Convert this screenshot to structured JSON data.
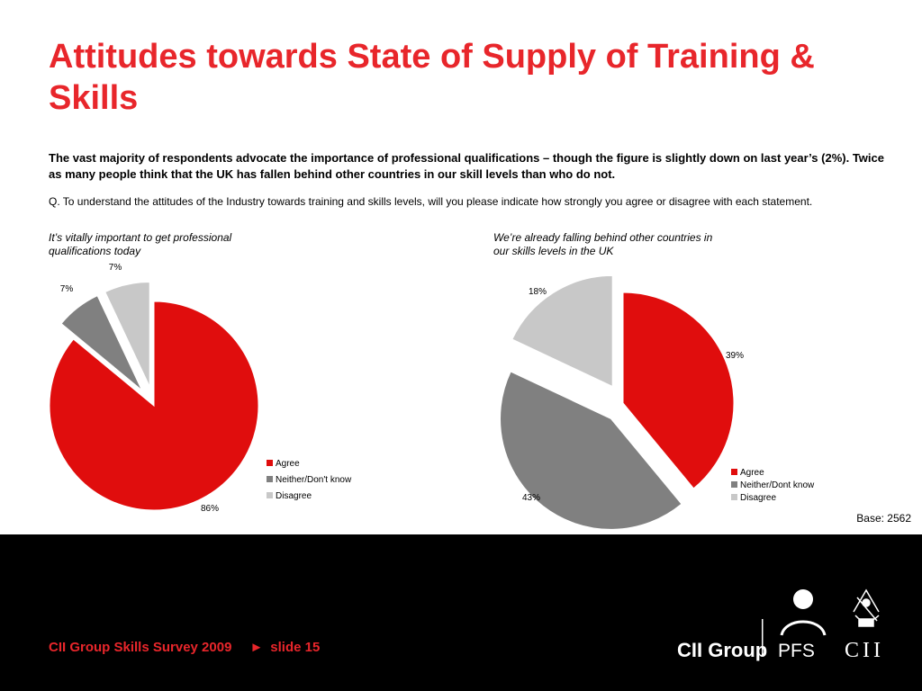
{
  "slide": {
    "title": "Attitudes towards State of Supply of Training & Skills",
    "lede": "The vast majority of respondents advocate the importance of professional qualifications – though the figure is slightly down on last year’s (2%). Twice as many people think that the UK has fallen behind other countries in our skill levels than who do not.",
    "question": "Q. To understand the attitudes of the Industry towards training and skills levels, will you please indicate how strongly you agree or disagree with each statement.",
    "base": "Base: 2562"
  },
  "colors": {
    "title_red": "#e8262b",
    "agree": "#e00d0d",
    "neither": "#808080",
    "disagree": "#c8c8c8",
    "footer_bg": "#000000"
  },
  "chart_data": [
    {
      "type": "pie",
      "title": "It’s vitally important to get professional qualifications today",
      "categories": [
        "Agree",
        "Neither/Don't know",
        "Disagree"
      ],
      "values": [
        86,
        7,
        7
      ],
      "labels": [
        "86%",
        "7%",
        "7%"
      ],
      "exploded": [
        false,
        true,
        true
      ],
      "legend_placement": "bottom-right"
    },
    {
      "type": "pie",
      "title": "We’re already falling behind other countries in our skills levels in the UK",
      "categories": [
        "Agree",
        "Neither/Dont know",
        "Disagree"
      ],
      "values": [
        39,
        43,
        18
      ],
      "labels": [
        "39%",
        "43%",
        "18%"
      ],
      "exploded": [
        false,
        true,
        true
      ],
      "legend_placement": "bottom-right"
    }
  ],
  "footer": {
    "survey": "CII Group Skills Survey 2009",
    "arrow": "►",
    "slide_label": "slide 15",
    "logo_cii_group": "CII Group",
    "logo_pfs": "PFS",
    "logo_cii": "CII"
  }
}
